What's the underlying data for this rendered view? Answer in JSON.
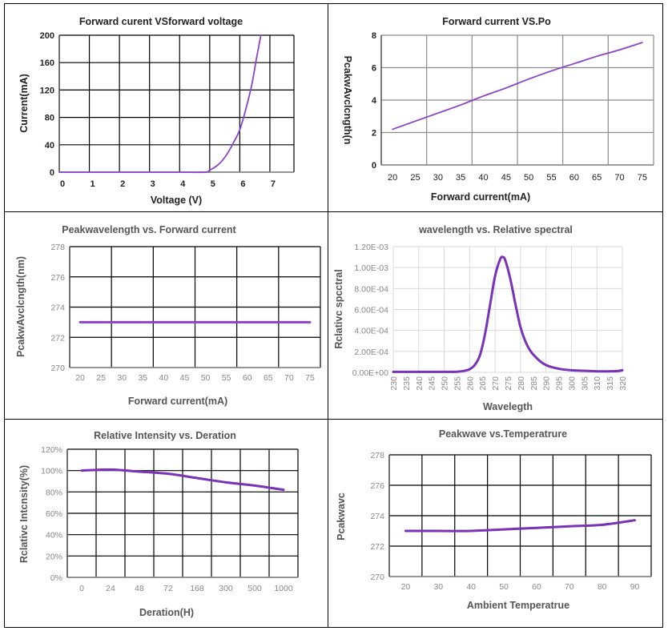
{
  "colors": {
    "series": "#8b44c8",
    "series_dark": "#7a32b8",
    "grid_dark": "#000000",
    "grid_light": "#d9d9d9",
    "grid_mid": "#8c8c8c"
  },
  "chart_data": [
    {
      "id": "iv",
      "type": "line",
      "title": "Forward curent VSforward voltage",
      "xlabel": "Voltage  (V)",
      "ylabel": "Current(mA)",
      "xlim": [
        0,
        7.8
      ],
      "ylim": [
        0,
        200
      ],
      "xticks": [
        "0",
        "1",
        "2",
        "3",
        "4",
        "5",
        "6",
        "7"
      ],
      "yticks": [
        "0",
        "40",
        "80",
        "120",
        "160",
        "200"
      ],
      "grid": true,
      "series": [
        {
          "name": "Forward current",
          "x": [
            0,
            1,
            2,
            3,
            4,
            4.85,
            5.0,
            5.2,
            5.4,
            5.6,
            5.8,
            6.0,
            6.2,
            6.4,
            6.55,
            6.7
          ],
          "y": [
            0,
            0,
            0,
            0,
            0,
            0,
            3,
            8,
            16,
            28,
            44,
            62,
            92,
            128,
            165,
            200
          ]
        }
      ]
    },
    {
      "id": "po",
      "type": "line",
      "title": "Forward current VS.Po",
      "xlabel": "Forward current(mA)",
      "ylabel": "PcakwAvclcngth(n",
      "xlim": [
        17.5,
        77.5
      ],
      "ylim": [
        0,
        8
      ],
      "xticks": [
        "20",
        "25",
        "30",
        "35",
        "40",
        "45",
        "50",
        "55",
        "60",
        "65",
        "70",
        "75"
      ],
      "yticks": [
        "0",
        "2",
        "4",
        "6",
        "8"
      ],
      "grid": true,
      "series": [
        {
          "name": "Po",
          "x": [
            20,
            25,
            30,
            35,
            40,
            45,
            50,
            55,
            60,
            65,
            70,
            75
          ],
          "y": [
            2.2,
            2.7,
            3.2,
            3.7,
            4.25,
            4.75,
            5.3,
            5.8,
            6.25,
            6.7,
            7.1,
            7.55
          ]
        }
      ]
    },
    {
      "id": "pwl_current",
      "type": "line",
      "title": "Peakwavelength vs. Forward current",
      "xlabel": "Forward current(mA)",
      "ylabel": "PcakwAvclcngth(nm)",
      "xlim": [
        17.5,
        77.5
      ],
      "ylim": [
        270,
        278
      ],
      "xticks": [
        "20",
        "25",
        "30",
        "35",
        "40",
        "45",
        "50",
        "55",
        "60",
        "65",
        "70",
        "75"
      ],
      "yticks": [
        "270",
        "272",
        "274",
        "276",
        "278"
      ],
      "grid": true,
      "series": [
        {
          "name": "Peak wavelength",
          "x": [
            20,
            75
          ],
          "y": [
            273,
            273
          ]
        }
      ]
    },
    {
      "id": "spectrum",
      "type": "line",
      "title": "wavelength  vs. Relative spectral",
      "xlabel": "Wavelegth",
      "ylabel": "Rclativc spcctral",
      "xlim": [
        230,
        320
      ],
      "ylim": [
        0,
        0.0012
      ],
      "xticks": [
        "230",
        "235",
        "240",
        "245",
        "250",
        "255",
        "260",
        "265",
        "270",
        "275",
        "280",
        "285",
        "290",
        "295",
        "300",
        "305",
        "310",
        "315",
        "320"
      ],
      "yticks": [
        "0.00E+00",
        "2.00E-04",
        "4.00E-04",
        "6.00E-04",
        "8.00E-04",
        "1.00E-03",
        "1.20E-03"
      ],
      "grid": true,
      "series": [
        {
          "name": "Relative spectral",
          "x": [
            230,
            240,
            250,
            255,
            258,
            260,
            262,
            264,
            266,
            268,
            270,
            272,
            273,
            274,
            276,
            278,
            280,
            282,
            284,
            286,
            288,
            290,
            293,
            296,
            300,
            305,
            310,
            315,
            318,
            320
          ],
          "y": [
            5e-06,
            5e-06,
            5e-06,
            6e-06,
            1.5e-05,
            3e-05,
            7e-05,
            0.00016,
            0.00036,
            0.00064,
            0.00092,
            0.00108,
            0.0011,
            0.00107,
            0.00089,
            0.00065,
            0.00043,
            0.00029,
            0.0002,
            0.000145,
            0.0001,
            7e-05,
            4.5e-05,
            3e-05,
            2e-05,
            1.5e-05,
            1e-05,
            1e-05,
            1.2e-05,
            2e-05
          ]
        }
      ]
    },
    {
      "id": "lifetime",
      "type": "line",
      "title": "Relative Intensity vs. Deration",
      "xlabel": "Deration(H)",
      "ylabel": "Rclativc Intcnsity(%)",
      "categories": [
        "0",
        "24",
        "48",
        "72",
        "168",
        "300",
        "500",
        "1000"
      ],
      "ylim": [
        0,
        120
      ],
      "yticks": [
        "0%",
        "20%",
        "40%",
        "60%",
        "80%",
        "100%",
        "120%"
      ],
      "grid": true,
      "series": [
        {
          "name": "Relative intensity (%)",
          "values": [
            100,
            101,
            99,
            97,
            93,
            89,
            86,
            82
          ]
        }
      ]
    },
    {
      "id": "pwl_temp",
      "type": "line",
      "title": "Peakwave vs.Temperatrure",
      "xlabel": "Ambient Temperatrue",
      "ylabel": "Pcakwavc",
      "categories": [
        "20",
        "30",
        "40",
        "50",
        "60",
        "70",
        "80",
        "90"
      ],
      "ylim": [
        270,
        278
      ],
      "yticks": [
        "270",
        "272",
        "274",
        "276",
        "278"
      ],
      "grid": true,
      "series": [
        {
          "name": "Peak wavelength",
          "values": [
            273.0,
            273.0,
            273.0,
            273.1,
            273.2,
            273.3,
            273.4,
            273.7
          ]
        }
      ]
    }
  ]
}
